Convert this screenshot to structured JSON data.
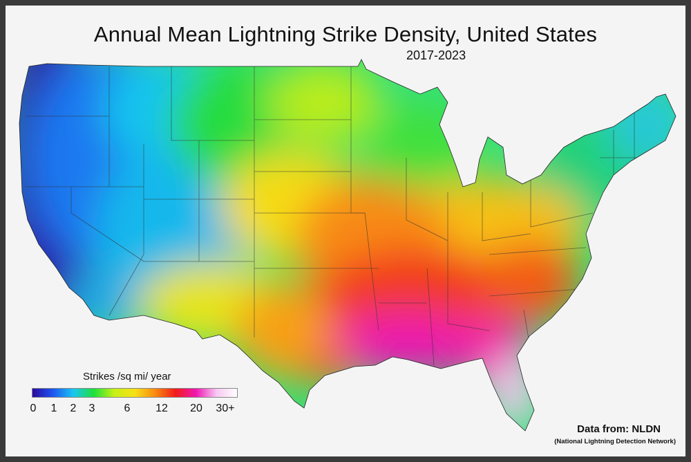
{
  "title": "Annual Mean Lightning Strike Density, United States",
  "years": "2017-2023",
  "legend": {
    "title": "Strikes /sq mi/ year",
    "ticks": [
      "0",
      "1",
      "2",
      "3",
      "6",
      "12",
      "20",
      "30+"
    ],
    "colors": [
      "#2a0a9e",
      "#1f55f0",
      "#19c6f2",
      "#1ee03a",
      "#c8f016",
      "#f7e016",
      "#f88a10",
      "#f21a1a",
      "#ef18b4",
      "#f7c8f2",
      "#ffffff"
    ]
  },
  "source": "Data from: NLDN",
  "source_full": "(National Lightning Detection Network)"
}
